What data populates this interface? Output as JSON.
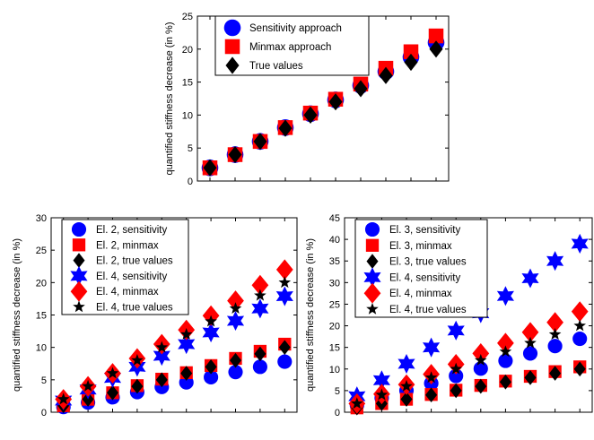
{
  "chart_data": [
    {
      "type": "scatter",
      "ylabel": "quantified stiffness decrease (in %)",
      "xlabel": "",
      "x": [
        1,
        2,
        3,
        4,
        5,
        6,
        7,
        8,
        9,
        10
      ],
      "xlim": [
        0.5,
        10.5
      ],
      "ylim": [
        0,
        25
      ],
      "yticks": [
        0,
        5,
        10,
        15,
        20,
        25
      ],
      "legend_position": "top-left",
      "series": [
        {
          "name": "Sensitivity approach",
          "marker": "circle",
          "color": "#0000FF",
          "values": [
            2,
            4,
            6,
            8.1,
            10.2,
            12.3,
            14.5,
            16.6,
            18.8,
            21
          ]
        },
        {
          "name": "Minmax approach",
          "marker": "square",
          "color": "#FF0000",
          "values": [
            2,
            4,
            6,
            8.1,
            10.3,
            12.4,
            14.7,
            17.1,
            19.6,
            22
          ]
        },
        {
          "name": "True values",
          "marker": "diamond",
          "color": "#000000",
          "values": [
            2,
            4,
            6,
            8,
            10,
            12,
            14,
            16,
            18,
            20
          ]
        }
      ]
    },
    {
      "type": "scatter",
      "ylabel": "quantified stiffness decrease (in %)",
      "xlabel": "",
      "x": [
        1,
        2,
        3,
        4,
        5,
        6,
        7,
        8,
        9,
        10
      ],
      "xlim": [
        0.5,
        10.5
      ],
      "ylim": [
        0,
        30
      ],
      "yticks": [
        0,
        5,
        10,
        15,
        20,
        25,
        30
      ],
      "legend_position": "top-left",
      "series": [
        {
          "name": "El. 2, sensitivity",
          "marker": "circle",
          "color": "#0000FF",
          "values": [
            0.8,
            1.5,
            2.3,
            3.1,
            3.9,
            4.6,
            5.4,
            6.2,
            7,
            7.8
          ]
        },
        {
          "name": "El. 2, minmax",
          "marker": "square",
          "color": "#FF0000",
          "values": [
            1,
            2,
            3,
            4.1,
            5.1,
            6.1,
            7.2,
            8.3,
            9.4,
            10.5
          ]
        },
        {
          "name": "El. 2, true values",
          "marker": "diamond",
          "color": "#000000",
          "values": [
            1,
            2,
            3,
            4,
            5,
            6,
            7,
            8,
            9,
            10
          ]
        },
        {
          "name": "El. 4, sensitivity",
          "marker": "star6",
          "color": "#0000FF",
          "values": [
            1.8,
            3.5,
            5.3,
            7,
            8.7,
            10.5,
            12.3,
            14.1,
            16,
            17.9
          ]
        },
        {
          "name": "El. 4, minmax",
          "marker": "diamond",
          "color": "#FF0000",
          "values": [
            2,
            4,
            6,
            8.3,
            10.5,
            12.7,
            14.9,
            17.2,
            19.6,
            22
          ]
        },
        {
          "name": "El. 4, true values",
          "marker": "star5",
          "color": "#000000",
          "values": [
            2,
            4,
            6,
            8,
            10,
            12,
            14,
            16,
            18,
            20
          ]
        }
      ]
    },
    {
      "type": "scatter",
      "ylabel": "quantified stiffness decrease (in %)",
      "xlabel": "",
      "x": [
        1,
        2,
        3,
        4,
        5,
        6,
        7,
        8,
        9,
        10
      ],
      "xlim": [
        0.5,
        10.5
      ],
      "ylim": [
        0,
        45
      ],
      "yticks": [
        0,
        5,
        10,
        15,
        20,
        25,
        30,
        35,
        40,
        45
      ],
      "legend_position": "top-left",
      "series": [
        {
          "name": "El. 3, sensitivity",
          "marker": "circle",
          "color": "#0000FF",
          "values": [
            1.6,
            3.3,
            5,
            6.7,
            8.4,
            10.1,
            11.9,
            13.6,
            15.3,
            17
          ]
        },
        {
          "name": "El. 3, minmax",
          "marker": "square",
          "color": "#FF0000",
          "values": [
            1,
            2,
            3,
            4.1,
            5.1,
            6.2,
            7.2,
            8.3,
            9.4,
            10.5
          ]
        },
        {
          "name": "El. 3, true values",
          "marker": "diamond",
          "color": "#000000",
          "values": [
            1,
            2,
            3,
            4,
            5,
            6,
            7,
            8,
            9,
            10
          ]
        },
        {
          "name": "El. 4, sensitivity",
          "marker": "star6",
          "color": "#0000FF",
          "values": [
            3.7,
            7.4,
            11.2,
            15,
            18.9,
            22.9,
            26.9,
            31,
            35,
            39
          ]
        },
        {
          "name": "El. 4, minmax",
          "marker": "diamond",
          "color": "#FF0000",
          "values": [
            2,
            4.2,
            6.4,
            8.8,
            11.1,
            13.6,
            16,
            18.5,
            20.8,
            23.3
          ]
        },
        {
          "name": "El. 4, true values",
          "marker": "star5",
          "color": "#000000",
          "values": [
            2,
            4,
            6,
            8,
            10,
            12,
            14,
            16,
            18,
            20
          ]
        }
      ]
    }
  ]
}
